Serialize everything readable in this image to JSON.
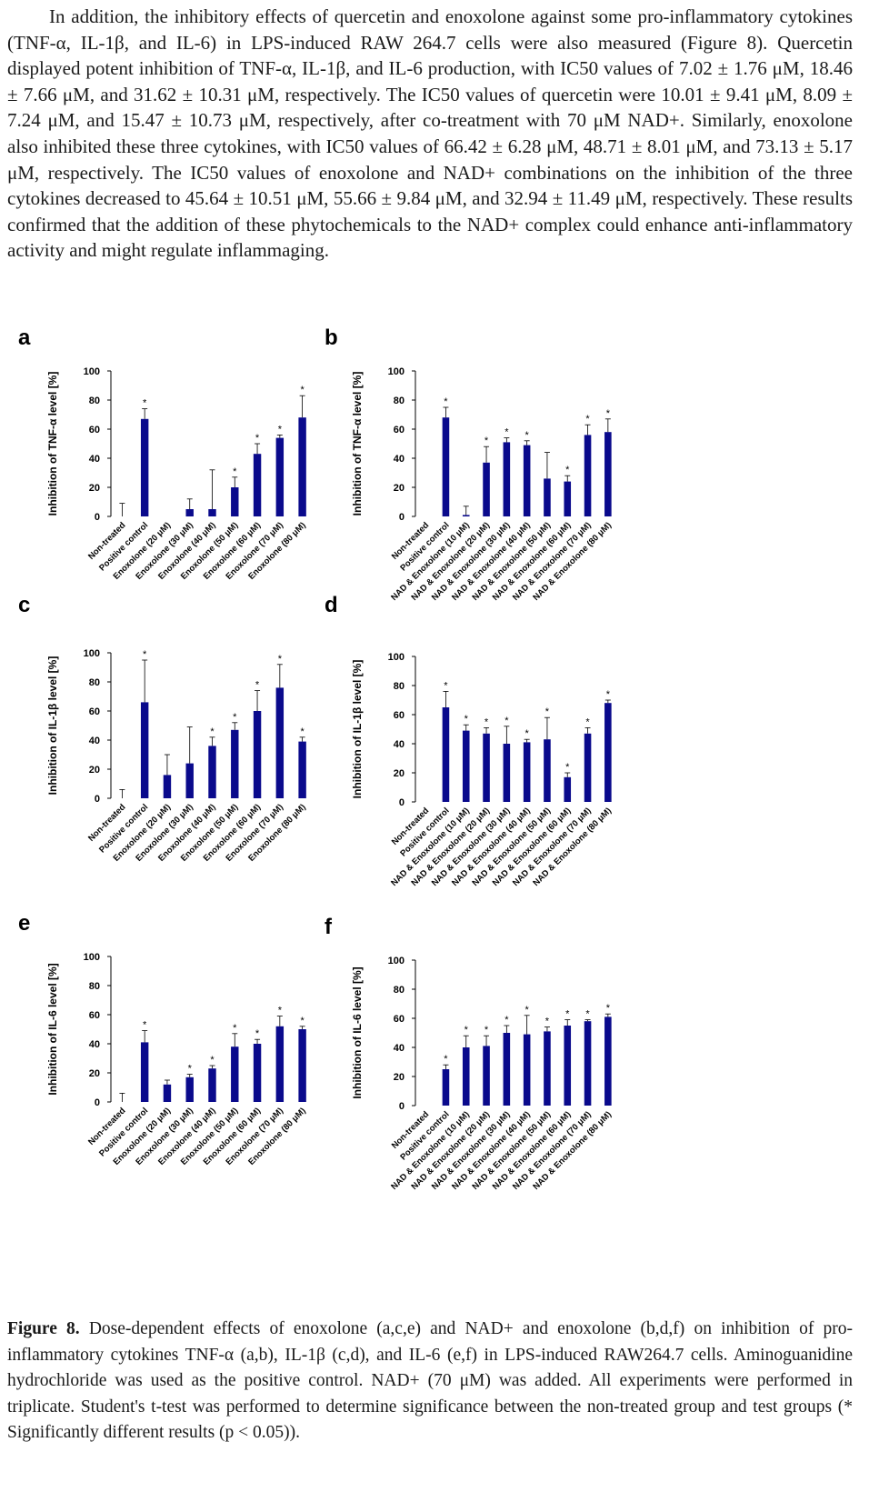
{
  "paragraph": "In addition, the inhibitory effects of quercetin and enoxolone against some pro-inflammatory cytokines (TNF-α, IL-1β, and IL-6) in LPS-induced RAW 264.7 cells were also measured (Figure 8). Quercetin displayed potent inhibition of TNF-α, IL-1β, and IL-6 production, with IC50 values of 7.02 ± 1.76 μM, 18.46 ± 7.66 μM, and 31.62 ± 10.31 μM, respectively. The IC50 values of quercetin were 10.01 ± 9.41 μM, 8.09 ± 7.24 μM, and 15.47 ± 10.73 μM, respectively, after co-treatment with 70 μM NAD+. Similarly, enoxolone also inhibited these three cytokines, with IC50 values of 66.42 ± 6.28 μM, 48.71 ± 8.01 μM, and 73.13 ± 5.17 μM, respectively. The IC50 values of enoxolone and NAD+ combinations on the inhibition of the three cytokines decreased to 45.64 ± 10.51 μM, 55.66 ± 9.84 μM, and 32.94 ± 11.49 μM, respectively. These results confirmed that the addition of these phytochemicals to the NAD+ complex could enhance anti-inflammatory activity and might regulate inflammaging.",
  "caption": {
    "label": "Figure 8.",
    "text": "Dose-dependent effects of enoxolone (a,c,e) and NAD+ and enoxolone (b,d,f) on inhibition of pro-inflammatory cytokines TNF-α (a,b), IL-1β (c,d), and IL-6 (e,f) in LPS-induced RAW264.7 cells. Aminoguanidine hydrochloride was used as the positive control. NAD+ (70 μM) was added. All experiments were performed in triplicate. Student's t-test was performed to determine significance between the non-treated group and test groups (* Significantly different results (p < 0.05))."
  },
  "colors": {
    "bar": "#0a0a8c",
    "axis": "#000000",
    "text": "#1a1a1a"
  },
  "chart_data": [
    {
      "panel": "a",
      "type": "bar",
      "ylabel": "Inhibition of TNF-α level [%]",
      "ylim": [
        0,
        100
      ],
      "yticks": [
        0,
        20,
        40,
        60,
        80,
        100
      ],
      "categories": [
        "Non-treated",
        "Positive control",
        "Enoxolone (20 μM)",
        "Enoxolone (30 μM)",
        "Enoxolone (40 μM)",
        "Enoxolone (50 μM)",
        "Enoxolone (60 μM)",
        "Enoxolone (70 μM)",
        "Enoxolone (80 μM)"
      ],
      "values": [
        0,
        67,
        0,
        5,
        5,
        20,
        43,
        54,
        68
      ],
      "errors": [
        9,
        7,
        0,
        7,
        27,
        7,
        7,
        2,
        15
      ],
      "significant": [
        false,
        true,
        false,
        false,
        false,
        true,
        true,
        true,
        true
      ]
    },
    {
      "panel": "b",
      "type": "bar",
      "ylabel": "Inhibition of TNF-α level [%]",
      "ylim": [
        0,
        100
      ],
      "yticks": [
        0,
        20,
        40,
        60,
        80,
        100
      ],
      "categories": [
        "Non-treated",
        "Positive control",
        "NAD & Enoxolone (10 μM)",
        "NAD & Enoxolone (20 μM)",
        "NAD & Enoxolone (30 μM)",
        "NAD & Enoxolone (40 μM)",
        "NAD & Enoxolone (50 μM)",
        "NAD & Enoxolone (60 μM)",
        "NAD & Enoxolone (70 μM)",
        "NAD & Enoxolone (80 μM)"
      ],
      "values": [
        0,
        68,
        1,
        37,
        51,
        49,
        26,
        24,
        56,
        58
      ],
      "errors": [
        0,
        7,
        6,
        11,
        3,
        3,
        18,
        4,
        7,
        9
      ],
      "significant": [
        false,
        true,
        false,
        true,
        true,
        true,
        false,
        true,
        true,
        true
      ]
    },
    {
      "panel": "c",
      "type": "bar",
      "ylabel": "Inhibition of IL-1β level [%]",
      "ylim": [
        0,
        100
      ],
      "yticks": [
        0,
        20,
        40,
        60,
        80,
        100
      ],
      "categories": [
        "Non-treated",
        "Positive control",
        "Enoxolone (20 μM)",
        "Enoxolone (30 μM)",
        "Enoxolone (40 μM)",
        "Enoxolone (50 μM)",
        "Enoxolone (60 μM)",
        "Enoxolone (70 μM)",
        "Enoxolone (80 μM)"
      ],
      "values": [
        0,
        66,
        16,
        24,
        36,
        47,
        60,
        76,
        39
      ],
      "errors": [
        6,
        29,
        14,
        25,
        6,
        5,
        14,
        16,
        3
      ],
      "significant": [
        false,
        true,
        false,
        false,
        true,
        true,
        true,
        true,
        true
      ]
    },
    {
      "panel": "d",
      "type": "bar",
      "ylabel": "Inhibition of IL-1β level [%]",
      "ylim": [
        0,
        100
      ],
      "yticks": [
        0,
        20,
        40,
        60,
        80,
        100
      ],
      "categories": [
        "Non-treated",
        "Positive control",
        "NAD & Enoxolone (10 μM)",
        "NAD & Enoxolone (20 μM)",
        "NAD & Enoxolone (30 μM)",
        "NAD & Enoxolone (40 μM)",
        "NAD & Enoxolone (50 μM)",
        "NAD & Enoxolone (60 μM)",
        "NAD & Enoxolone (70 μM)",
        "NAD & Enoxolone (80 μM)"
      ],
      "values": [
        0,
        65,
        49,
        47,
        40,
        41,
        43,
        17,
        47,
        68
      ],
      "errors": [
        0,
        11,
        4,
        4,
        12,
        2,
        15,
        3,
        4,
        2
      ],
      "significant": [
        false,
        true,
        true,
        true,
        true,
        true,
        true,
        true,
        true,
        true
      ]
    },
    {
      "panel": "e",
      "type": "bar",
      "ylabel": "Inhibition of IL-6 level [%]",
      "ylim": [
        0,
        100
      ],
      "yticks": [
        0,
        20,
        40,
        60,
        80,
        100
      ],
      "categories": [
        "Non-treated",
        "Positive control",
        "Enoxolone (20 μM)",
        "Enoxolone (30 μM)",
        "Enoxolone (40 μM)",
        "Enoxolone (50 μM)",
        "Enoxolone (60 μM)",
        "Enoxolone (70 μM)",
        "Enoxolone (80 μM)"
      ],
      "values": [
        0,
        41,
        12,
        17,
        23,
        38,
        40,
        52,
        50
      ],
      "errors": [
        6,
        8,
        3,
        2,
        2,
        9,
        3,
        7,
        2
      ],
      "significant": [
        false,
        true,
        false,
        true,
        true,
        true,
        true,
        true,
        true
      ]
    },
    {
      "panel": "f",
      "type": "bar",
      "ylabel": "Inhibition of IL-6 level [%]",
      "ylim": [
        0,
        100
      ],
      "yticks": [
        0,
        20,
        40,
        60,
        80,
        100
      ],
      "categories": [
        "Non-treated",
        "Positive control",
        "NAD & Enoxolone (10 μM)",
        "NAD & Enoxolone (20 μM)",
        "NAD & Enoxolone (30 μM)",
        "NAD & Enoxolone (40 μM)",
        "NAD & Enoxolone (50 μM)",
        "NAD & Enoxolone (60 μM)",
        "NAD & Enoxolone (70 μM)",
        "NAD & Enoxolone (80 μM)"
      ],
      "values": [
        0,
        25,
        40,
        41,
        50,
        49,
        51,
        55,
        58,
        61
      ],
      "errors": [
        0,
        3,
        8,
        7,
        5,
        13,
        3,
        4,
        1,
        2
      ],
      "significant": [
        false,
        true,
        true,
        true,
        true,
        true,
        true,
        true,
        true,
        true
      ]
    }
  ]
}
